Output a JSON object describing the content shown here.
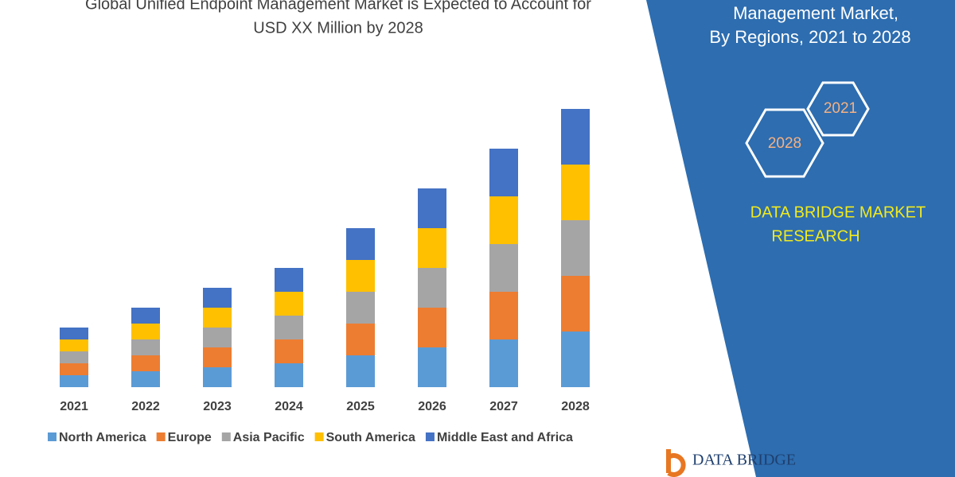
{
  "chart_data": {
    "type": "stacked-bar",
    "title_lines": [
      "Global Unified Endpoint Management Market is Expected to Account for",
      "USD XX Million by 2028"
    ],
    "categories": [
      "2021",
      "2022",
      "2023",
      "2024",
      "2025",
      "2026",
      "2027",
      "2028"
    ],
    "series": [
      {
        "name": "North America",
        "color": "#5b9bd5",
        "values": [
          3,
          4,
          5,
          6,
          8,
          10,
          12,
          14
        ]
      },
      {
        "name": "Europe",
        "color": "#ed7d31",
        "values": [
          3,
          4,
          5,
          6,
          8,
          10,
          12,
          14
        ]
      },
      {
        "name": "Asia Pacific",
        "color": "#a5a5a5",
        "values": [
          3,
          4,
          5,
          6,
          8,
          10,
          12,
          14
        ]
      },
      {
        "name": "South America",
        "color": "#ffc000",
        "values": [
          3,
          4,
          5,
          6,
          8,
          10,
          12,
          14
        ]
      },
      {
        "name": "Middle East and Africa",
        "color": "#4472c4",
        "values": [
          3,
          4,
          5,
          6,
          8,
          10,
          12,
          14
        ]
      }
    ],
    "legend": "bottom"
  },
  "panel": {
    "heading_lines": [
      "Management Market,",
      "By Regions, 2021 to 2028"
    ],
    "hexagons": [
      "2021",
      "2028"
    ],
    "brand_lines": [
      "DATA BRIDGE MARKET",
      "RESEARCH"
    ],
    "logo": "DATA BRIDGE"
  }
}
